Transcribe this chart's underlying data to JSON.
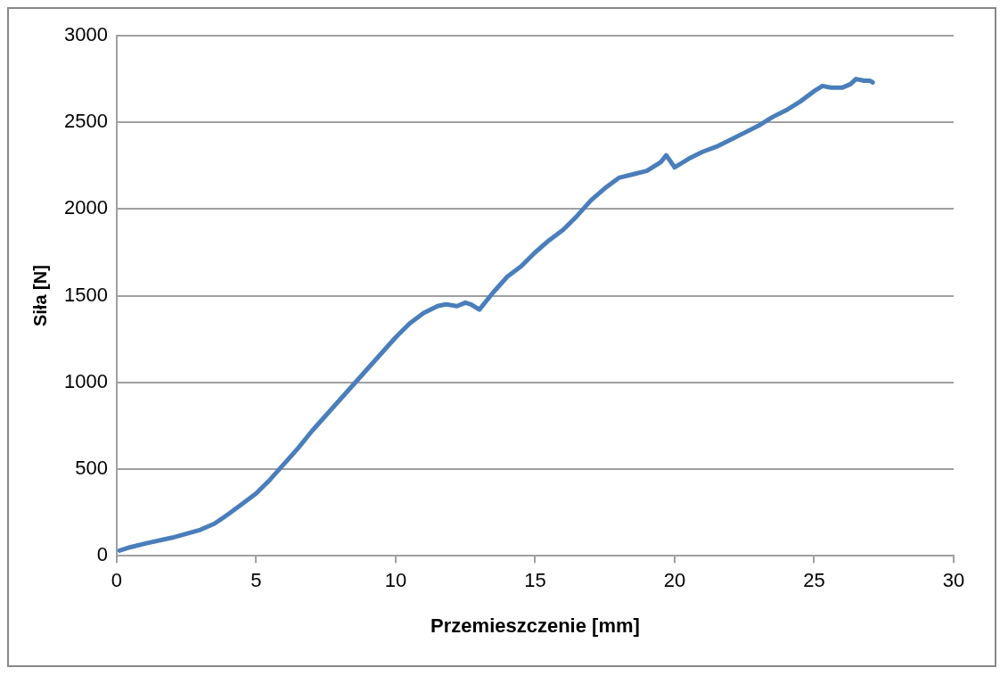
{
  "chart_data": {
    "type": "line",
    "xlabel": "Przemieszczenie [mm]",
    "ylabel": "Siła [N]",
    "xlim": [
      0,
      30
    ],
    "xticks": [
      0,
      5,
      10,
      15,
      20,
      25,
      30
    ],
    "ylim": [
      0,
      3000
    ],
    "yticks": [
      0,
      500,
      1000,
      1500,
      2000,
      2500,
      3000
    ],
    "grid": "y",
    "legend": false,
    "marker": "none",
    "line_style": "solid",
    "series": [
      {
        "color": "#4a7ebb",
        "x": [
          0.1,
          0.5,
          1,
          2,
          3,
          3.5,
          4,
          4.5,
          5,
          5.5,
          6,
          6.5,
          7,
          7.5,
          8,
          8.5,
          9,
          9.5,
          10,
          10.5,
          11,
          11.5,
          11.8,
          12.2,
          12.5,
          12.7,
          13,
          13.5,
          14,
          14.5,
          15,
          15.5,
          16,
          16.5,
          17,
          17.5,
          18,
          18.5,
          19,
          19.5,
          19.7,
          20,
          20.5,
          21,
          21.5,
          22,
          22.5,
          23,
          23.5,
          24,
          24.5,
          25,
          25.3,
          25.6,
          26,
          26.3,
          26.5,
          26.8,
          27,
          27.1
        ],
        "values": [
          30,
          50,
          70,
          105,
          150,
          185,
          240,
          300,
          360,
          440,
          530,
          620,
          720,
          810,
          900,
          990,
          1080,
          1170,
          1260,
          1340,
          1400,
          1440,
          1450,
          1440,
          1460,
          1450,
          1420,
          1520,
          1610,
          1670,
          1750,
          1820,
          1880,
          1960,
          2050,
          2120,
          2180,
          2200,
          2220,
          2270,
          2310,
          2240,
          2290,
          2330,
          2360,
          2400,
          2440,
          2480,
          2530,
          2570,
          2620,
          2680,
          2710,
          2700,
          2700,
          2720,
          2750,
          2740,
          2740,
          2730
        ]
      }
    ]
  }
}
